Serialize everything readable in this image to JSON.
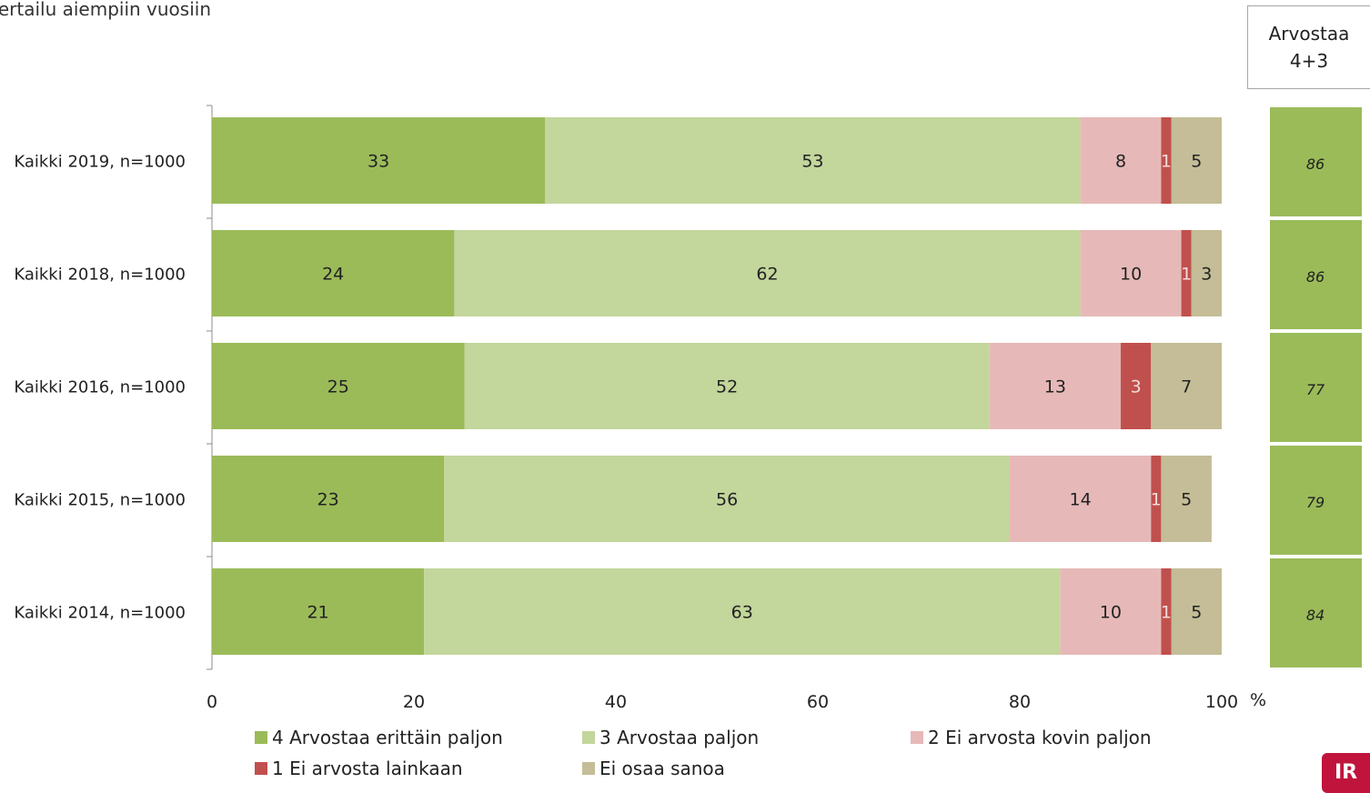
{
  "subtitle": "vertailu aiempiin vuosiin",
  "summary": {
    "line1": "Arvostaa",
    "line2": "4+3"
  },
  "logo_text": "IR",
  "chart_data": {
    "type": "bar",
    "orientation": "horizontal",
    "stacked": true,
    "categories": [
      "Kaikki 2019, n=1000",
      "Kaikki 2018, n=1000",
      "Kaikki 2016, n=1000",
      "Kaikki 2015, n=1000",
      "Kaikki 2014, n=1000"
    ],
    "series": [
      {
        "name": "4 Arvostaa erittäin paljon",
        "color": "#9bbb59",
        "label_color": "#222222",
        "values": [
          33,
          24,
          25,
          23,
          21
        ]
      },
      {
        "name": "3 Arvostaa paljon",
        "color": "#c3d69b",
        "label_color": "#222222",
        "values": [
          53,
          62,
          52,
          56,
          63
        ]
      },
      {
        "name": "2 Ei arvosta kovin paljon",
        "color": "#e6b9b8",
        "label_color": "#222222",
        "values": [
          8,
          10,
          13,
          14,
          10
        ]
      },
      {
        "name": "1 Ei arvosta lainkaan",
        "color": "#c0504d",
        "label_color": "#f2dcdb",
        "values": [
          1,
          1,
          3,
          1,
          1
        ]
      },
      {
        "name": "Ei osaa sanoa",
        "color": "#c4bd97",
        "label_color": "#222222",
        "values": [
          5,
          3,
          7,
          5,
          5
        ]
      }
    ],
    "summary_values": [
      "86",
      "86",
      "77",
      "79",
      "84"
    ],
    "summary_color": "#9bbb59",
    "xlim": [
      0,
      100
    ],
    "xticks": [
      "0",
      "20",
      "40",
      "60",
      "80",
      "100"
    ],
    "xunit": "%",
    "legend_position": "bottom"
  }
}
